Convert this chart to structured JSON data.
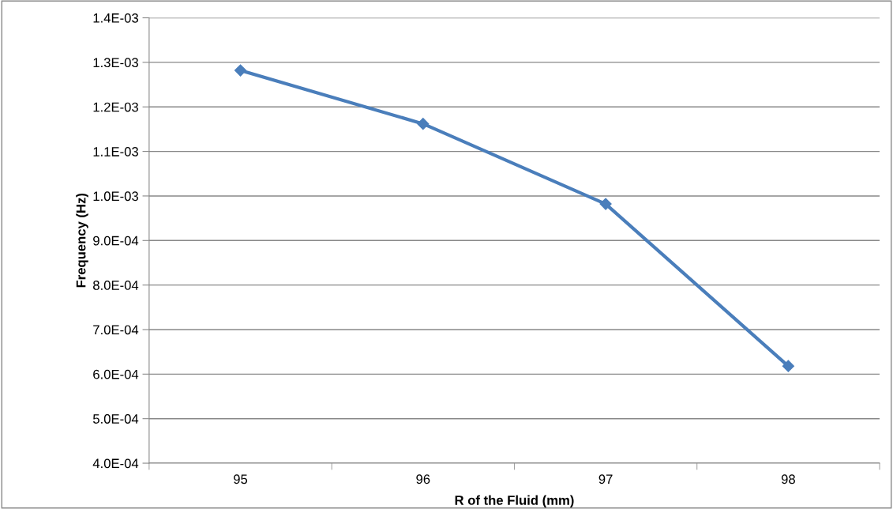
{
  "chart_data": {
    "type": "line",
    "xlabel": "R of the Fluid (mm)",
    "ylabel": "Frequency (Hz)",
    "categories": [
      "95",
      "96",
      "97",
      "98"
    ],
    "series": [
      {
        "color": "#4a7ebb",
        "values": [
          0.001282,
          0.001162,
          0.000982,
          0.000618
        ]
      }
    ],
    "ylim": [
      0.0004,
      0.0014
    ],
    "yticks": [
      {
        "value": 0.0004,
        "label": "4.0E-04"
      },
      {
        "value": 0.0005,
        "label": "5.0E-04"
      },
      {
        "value": 0.0006,
        "label": "6.0E-04"
      },
      {
        "value": 0.0007,
        "label": "7.0E-04"
      },
      {
        "value": 0.0008,
        "label": "8.0E-04"
      },
      {
        "value": 0.0009,
        "label": "9.0E-04"
      },
      {
        "value": 0.001,
        "label": "1.0E-03"
      },
      {
        "value": 0.0011,
        "label": "1.1E-03"
      },
      {
        "value": 0.0012,
        "label": "1.2E-03"
      },
      {
        "value": 0.0013,
        "label": "1.3E-03"
      },
      {
        "value": 0.0014,
        "label": "1.4E-03"
      }
    ],
    "grid": "y",
    "marker": "diamond",
    "line_style": "solid"
  }
}
